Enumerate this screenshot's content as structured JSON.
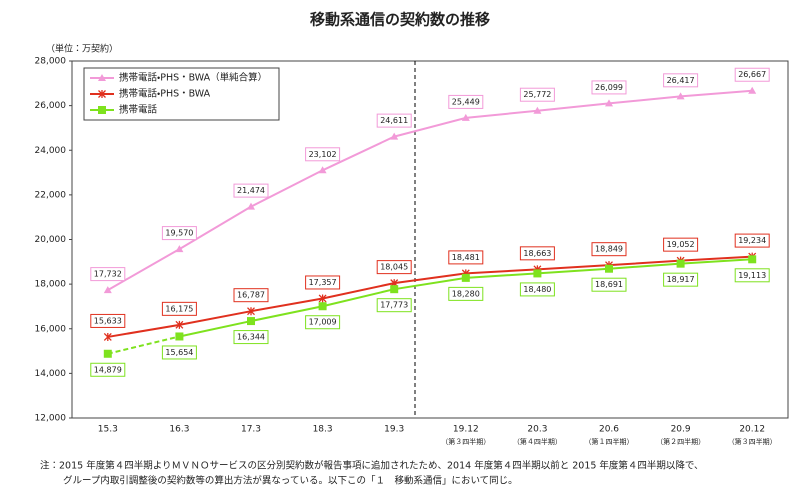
{
  "chart_data": {
    "type": "line",
    "title": "移動系通信の契約数の推移",
    "unit_label": "（単位：万契約）",
    "categories": [
      "15.3",
      "16.3",
      "17.3",
      "18.3",
      "19.3",
      "19.12",
      "20.3",
      "20.6",
      "20.9",
      "20.12"
    ],
    "category_sublabels": [
      null,
      null,
      null,
      null,
      null,
      "（第３四半期）",
      "（第４四半期）",
      "（第１四半期）",
      "（第２四半期）",
      "（第３四半期）"
    ],
    "ylim": [
      12000,
      28000
    ],
    "yticks": [
      {
        "value": 12000,
        "label": "12,000"
      },
      {
        "value": 14000,
        "label": "14,000"
      },
      {
        "value": 16000,
        "label": "16,000"
      },
      {
        "value": 18000,
        "label": "18,000"
      },
      {
        "value": 20000,
        "label": "20,000"
      },
      {
        "value": 22000,
        "label": "22,000"
      },
      {
        "value": 24000,
        "label": "24,000"
      },
      {
        "value": 26000,
        "label": "26,000"
      },
      {
        "value": 28000,
        "label": "28,000"
      }
    ],
    "legend": "upper left",
    "series": [
      {
        "name": "携帯電話・PHS・BWA（単純合算）",
        "color": "#f29ad8",
        "marker": "triangle",
        "label_position": "above",
        "values": [
          17732,
          19570,
          21474,
          23102,
          24611,
          25449,
          25772,
          26099,
          26417,
          26667
        ],
        "value_labels": [
          "17,732",
          "19,570",
          "21,474",
          "23,102",
          "24,611",
          "25,449",
          "25,772",
          "26,099",
          "26,417",
          "26,667"
        ]
      },
      {
        "name": "携帯電話・PHS・BWA",
        "color": "#e0301e",
        "marker": "asterisk",
        "label_position": "above",
        "values": [
          15633,
          16175,
          16787,
          17357,
          18045,
          18481,
          18663,
          18849,
          19052,
          19234
        ],
        "value_labels": [
          "15,633",
          "16,175",
          "16,787",
          "17,357",
          "18,045",
          "18,481",
          "18,663",
          "18,849",
          "19,052",
          "19,234"
        ]
      },
      {
        "name": "携帯電話",
        "color": "#7ee21e",
        "marker": "square",
        "label_position": "below",
        "dash_first_segment": true,
        "values": [
          14879,
          15654,
          16344,
          17009,
          17773,
          18280,
          18480,
          18691,
          18917,
          19113
        ],
        "value_labels": [
          "14,879",
          "15,654",
          "16,344",
          "17,009",
          "17,773",
          "18,280",
          "18,480",
          "18,691",
          "18,917",
          "19,113"
        ]
      }
    ],
    "notes": [
      "注：2015 年度第４四半期よりＭＶＮＯサービスの区分別契約数が報告事項に追加されたため、2014 年度第４四半期以前と 2015 年度第４四半期以降で、",
      "グループ内取引調整後の契約数等の算出方法が異なっている。以下この「１　移動系通信」において同じ。"
    ]
  }
}
